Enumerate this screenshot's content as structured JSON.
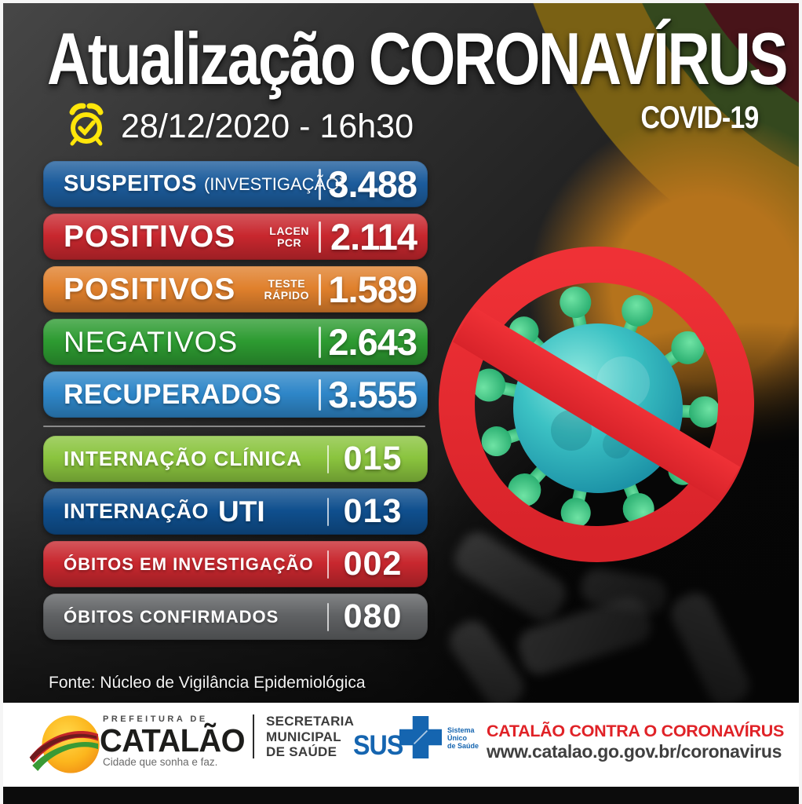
{
  "header": {
    "title": "Atualização CORONAVÍRUS",
    "covid_label": "COVID-19",
    "datetime": "28/12/2020 - 16h30",
    "datetime_icon": "alarm-clock-check"
  },
  "stats": [
    {
      "id": "suspeitos",
      "variant": "suspects",
      "label": "SUSPEITOS",
      "sublabel_inline": "(INVESTIGAÇÃO)",
      "value": "3.488",
      "color": "#1c5c9c"
    },
    {
      "id": "positivos-lacen-pcr",
      "variant": "positive",
      "label": "POSITIVOS",
      "sublabel_stack": [
        "LACEN",
        "PCR"
      ],
      "value": "2.114",
      "color": "#c8272e"
    },
    {
      "id": "positivos-teste-rapido",
      "variant": "positive",
      "label": "POSITIVOS",
      "sublabel_stack": [
        "TESTE",
        "RÁPIDO"
      ],
      "value": "1.589",
      "color": "#e0802c"
    },
    {
      "id": "negativos",
      "variant": "negative",
      "label": "NEGATIVOS",
      "value": "2.643",
      "color": "#2d9b31"
    },
    {
      "id": "recuperados",
      "variant": "recovered",
      "label": "RECUPERADOS",
      "value": "3.555",
      "color": "#2e86c8",
      "divider_after": true
    },
    {
      "id": "internacao-clinica",
      "variant": "ward",
      "label": "INTERNAÇÃO CLÍNICA",
      "value": "015",
      "color": "#8ac43e"
    },
    {
      "id": "internacao-uti",
      "variant": "icu",
      "label": "INTERNAÇÃO",
      "label_big": "UTI",
      "value": "013",
      "color": "#0f4f8e"
    },
    {
      "id": "obitos-em-investigacao",
      "variant": "deaths",
      "label": "ÓBITOS EM INVESTIGAÇÃO",
      "value": "002",
      "color": "#c8272e"
    },
    {
      "id": "obitos-confirmados",
      "variant": "deaths",
      "label": "ÓBITOS CONFIRMADOS",
      "value": "080",
      "color": "#5f6163"
    }
  ],
  "chart_data": {
    "type": "bar",
    "title": "Atualização CORONAVÍRUS — COVID-19",
    "date": "28/12/2020 - 16h30",
    "categories": [
      "Suspeitos (investigação)",
      "Positivos LACEN PCR",
      "Positivos teste rápido",
      "Negativos",
      "Recuperados",
      "Internação clínica",
      "Internação UTI",
      "Óbitos em investigação",
      "Óbitos confirmados"
    ],
    "values": [
      3488,
      2114,
      1589,
      2643,
      3555,
      15,
      13,
      2,
      80
    ],
    "value_labels": [
      "3.488",
      "2.114",
      "1.589",
      "2.643",
      "3.555",
      "015",
      "013",
      "002",
      "080"
    ],
    "colors": [
      "#1c5c9c",
      "#c8272e",
      "#e0802c",
      "#2d9b31",
      "#2e86c8",
      "#8ac43e",
      "#0f4f8e",
      "#c8272e",
      "#5f6163"
    ],
    "legend": "none",
    "source": "Núcleo de Vigilância Epidemiológica"
  },
  "source": {
    "text": "Fonte: Núcleo de Vigilância Epidemiológica"
  },
  "footer": {
    "prefeitura_label": "PREFEITURA DE",
    "city_name": "CATALÃO",
    "tagline": "Cidade que sonha e faz.",
    "secretaria": "SECRETARIA\nMUNICIPAL\nDE SAÚDE",
    "sus_label": "SUS",
    "sus_caption": "Sistema\nÚnico\nde Saúde",
    "campaign": "CATALÃO CONTRA O CORONAVÍRUS",
    "website": "www.catalao.go.gov.br/coronavirus"
  },
  "colors": {
    "prohibition_red": "#e42a30",
    "virus_body": "#2ab5b5",
    "virus_spikes": "#2fbf7f",
    "clock_yellow": "#ffe60a",
    "campaign_red": "#e02227",
    "sus_blue": "#1565b0"
  }
}
